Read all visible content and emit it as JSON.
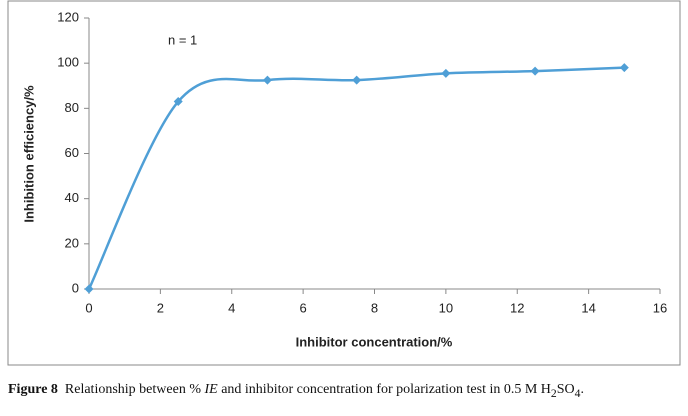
{
  "chart_data": {
    "type": "line",
    "annotation": "n = 1",
    "x_label": "Inhibitor concentration/%",
    "y_label": "Inhibition efficiency/%",
    "x": [
      0,
      2.5,
      5,
      7.5,
      10,
      12.5,
      15
    ],
    "series": [
      {
        "name": "IE",
        "color": "#4f9fd6",
        "values": [
          0,
          83,
          92.5,
          92.5,
          95.5,
          96.5,
          98
        ]
      }
    ],
    "xlim": [
      0,
      16
    ],
    "xticks": [
      0,
      2,
      4,
      6,
      8,
      10,
      12,
      14,
      16
    ],
    "ylim": [
      0,
      120
    ],
    "yticks": [
      0,
      20,
      40,
      60,
      80,
      100,
      120
    ],
    "smooth": true
  },
  "caption_parts": [
    "Figure 8",
    "Relationship between %",
    "IE",
    "and inhibitor concentration for polarization test in 0.5 M H",
    "2",
    "SO",
    "4",
    "."
  ]
}
